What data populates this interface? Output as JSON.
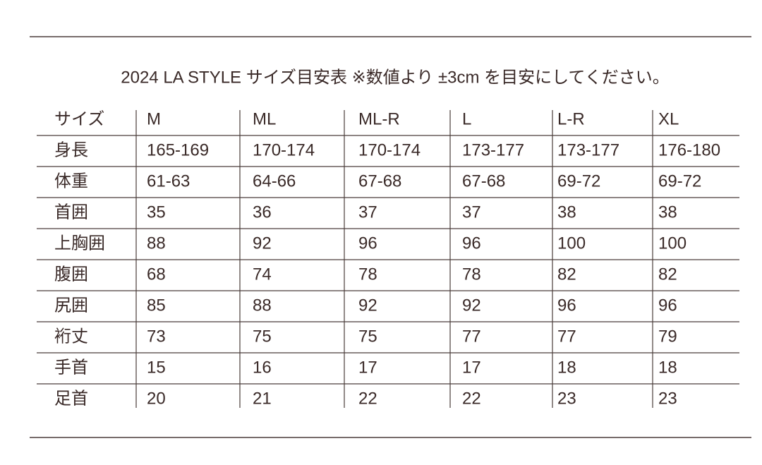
{
  "title": "2024 LA STYLE サイズ目安表 ※数値より ±3cm を目安にしてください。",
  "table": {
    "header": [
      "サイズ",
      "M",
      "ML",
      "ML-R",
      "L",
      "L-R",
      "XL"
    ],
    "rows": [
      [
        "身長",
        "165-169",
        "170-174",
        "170-174",
        "173-177",
        "173-177",
        "176-180"
      ],
      [
        "体重",
        "61-63",
        "64-66",
        "67-68",
        "67-68",
        "69-72",
        "69-72"
      ],
      [
        "首囲",
        "35",
        "36",
        "37",
        "37",
        "38",
        "38"
      ],
      [
        "上胸囲",
        "88",
        "92",
        "96",
        "96",
        "100",
        "100"
      ],
      [
        "腹囲",
        "68",
        "74",
        "78",
        "78",
        "82",
        "82"
      ],
      [
        "尻囲",
        "85",
        "88",
        "92",
        "92",
        "96",
        "96"
      ],
      [
        "裄丈",
        "73",
        "75",
        "75",
        "77",
        "77",
        "79"
      ],
      [
        "手首",
        "15",
        "16",
        "17",
        "17",
        "18",
        "18"
      ],
      [
        "足首",
        "20",
        "21",
        "22",
        "22",
        "23",
        "23"
      ]
    ]
  }
}
